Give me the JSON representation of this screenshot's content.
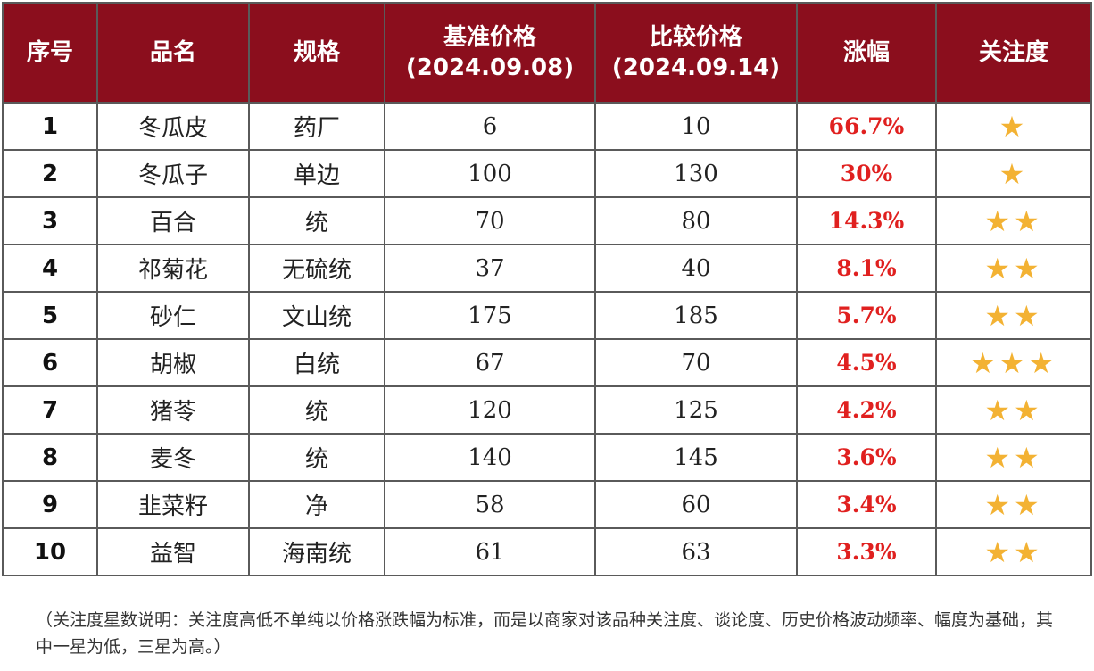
{
  "headers": {
    "index": "序号",
    "name": "品名",
    "spec": "规格",
    "base_price": "基准价格",
    "base_date": "(2024.09.08)",
    "compare_price": "比较价格",
    "compare_date": "(2024.09.14)",
    "change": "涨幅",
    "attention": "关注度"
  },
  "rows": [
    {
      "idx": "1",
      "name": "冬瓜皮",
      "spec": "药厂",
      "base": "6",
      "compare": "10",
      "change": "66.7%",
      "stars": "★",
      "star_count": 1
    },
    {
      "idx": "2",
      "name": "冬瓜子",
      "spec": "单边",
      "base": "100",
      "compare": "130",
      "change": "30%",
      "stars": "★",
      "star_count": 1
    },
    {
      "idx": "3",
      "name": "百合",
      "spec": "统",
      "base": "70",
      "compare": "80",
      "change": "14.3%",
      "stars": "★★",
      "star_count": 2
    },
    {
      "idx": "4",
      "name": "祁菊花",
      "spec": "无硫统",
      "base": "37",
      "compare": "40",
      "change": "8.1%",
      "stars": "★★",
      "star_count": 2
    },
    {
      "idx": "5",
      "name": "砂仁",
      "spec": "文山统",
      "base": "175",
      "compare": "185",
      "change": "5.7%",
      "stars": "★★",
      "star_count": 2
    },
    {
      "idx": "6",
      "name": "胡椒",
      "spec": "白统",
      "base": "67",
      "compare": "70",
      "change": "4.5%",
      "stars": "★★★",
      "star_count": 3
    },
    {
      "idx": "7",
      "name": "猪苓",
      "spec": "统",
      "base": "120",
      "compare": "125",
      "change": "4.2%",
      "stars": "★★",
      "star_count": 2
    },
    {
      "idx": "8",
      "name": "麦冬",
      "spec": "统",
      "base": "140",
      "compare": "145",
      "change": "3.6%",
      "stars": "★★",
      "star_count": 2
    },
    {
      "idx": "9",
      "name": "韭菜籽",
      "spec": "净",
      "base": "58",
      "compare": "60",
      "change": "3.4%",
      "stars": "★★",
      "star_count": 2
    },
    {
      "idx": "10",
      "name": "益智",
      "spec": "海南统",
      "base": "61",
      "compare": "63",
      "change": "3.3%",
      "stars": "★★",
      "star_count": 2
    }
  ],
  "note": "（关注度星数说明：关注度高低不单纯以价格涨跌幅为标准，而是以商家对该品种关注度、谈论度、历史价格波动频率、幅度为基础，其中一星为低，三星为高。）",
  "colors": {
    "header_bg": "#8b0e1d",
    "header_text": "#ffffff",
    "change_text": "#e0201f",
    "star": "#f3b233",
    "border": "#5a5a5a"
  }
}
